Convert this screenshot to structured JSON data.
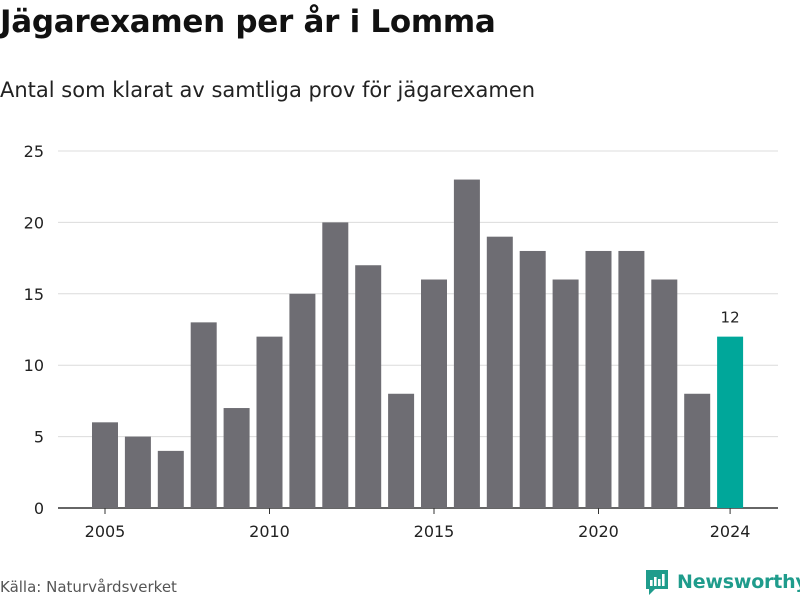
{
  "title": "Jägarexamen per år i Lomma",
  "subtitle": "Antal som klarat av samtliga prov för jägarexamen",
  "source": "Källa: Naturvårdsverket",
  "brand": {
    "name": "Newsworthy",
    "icon": "newsworthy-logo-icon",
    "color": "#1f9c8c"
  },
  "colors": {
    "bar": "#6e6d73",
    "highlight": "#00a79a",
    "grid": "#dcdcdc",
    "axis": "#333333"
  },
  "chart_data": {
    "type": "bar",
    "title": "Jägarexamen per år i Lomma",
    "subtitle": "Antal som klarat av samtliga prov för jägarexamen",
    "xlabel": "",
    "ylabel": "",
    "categories": [
      "2005",
      "2006",
      "2007",
      "2008",
      "2009",
      "2010",
      "2011",
      "2012",
      "2013",
      "2014",
      "2015",
      "2016",
      "2017",
      "2018",
      "2019",
      "2020",
      "2021",
      "2022",
      "2023",
      "2024"
    ],
    "values": [
      6,
      5,
      4,
      13,
      7,
      12,
      15,
      20,
      17,
      8,
      16,
      23,
      19,
      18,
      16,
      18,
      18,
      16,
      8,
      12
    ],
    "ylim": [
      0,
      25
    ],
    "yticks": [
      0,
      5,
      10,
      15,
      20,
      25
    ],
    "xticks": [
      "2005",
      "2010",
      "2015",
      "2020",
      "2024"
    ],
    "highlight": {
      "category": "2024",
      "label": "12"
    },
    "grid": true,
    "legend": "none"
  }
}
